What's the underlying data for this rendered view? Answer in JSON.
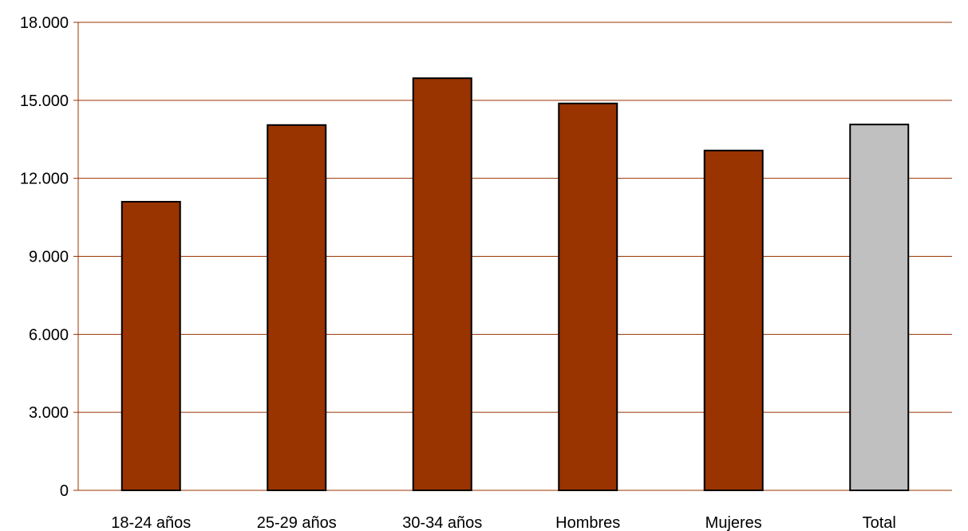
{
  "chart_data": {
    "type": "bar",
    "categories": [
      "18-24 años",
      "25-29 años",
      "30-34 años",
      "Hombres",
      "Mujeres",
      "Total"
    ],
    "values": [
      11100,
      14050,
      15850,
      14880,
      13070,
      14070
    ],
    "bar_colors": [
      "#993300",
      "#993300",
      "#993300",
      "#993300",
      "#993300",
      "#c0c0c0"
    ],
    "ylim": [
      0,
      18000
    ],
    "yticks": [
      0,
      3000,
      6000,
      9000,
      12000,
      15000,
      18000
    ],
    "ytick_labels": [
      "0",
      "3.000",
      "6.000",
      "9.000",
      "12.000",
      "15.000",
      "18.000"
    ],
    "grid": true,
    "gridline_color": "#993300",
    "title": "",
    "xlabel": "",
    "ylabel": ""
  }
}
